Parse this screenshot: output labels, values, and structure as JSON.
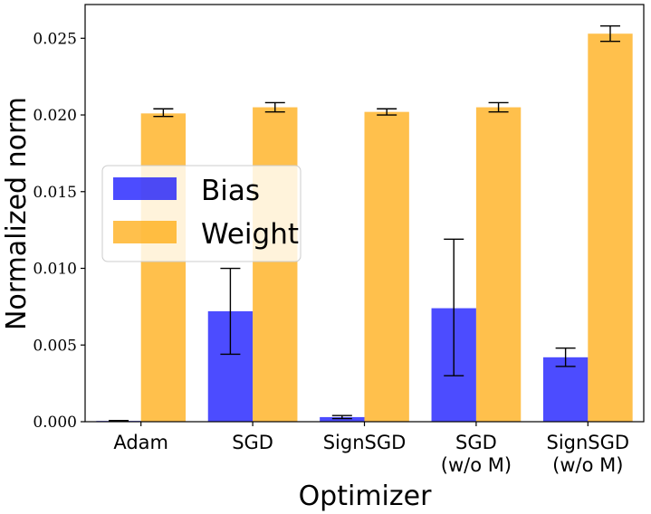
{
  "chart_data": {
    "type": "bar",
    "title": "",
    "xlabel": "Optimizer",
    "ylabel": "Normalized norm",
    "categories": [
      [
        "Adam"
      ],
      [
        "SGD"
      ],
      [
        "SignSGD"
      ],
      [
        "SGD",
        "(w/o M)"
      ],
      [
        "SignSGD",
        "(w/o M)"
      ]
    ],
    "series": [
      {
        "name": "Bias",
        "color": "#0000ff",
        "values": [
          5e-05,
          0.0072,
          0.0003,
          0.0074,
          0.0042
        ],
        "error_low": [
          3e-05,
          0.0044,
          0.0002,
          0.003,
          0.0036
        ],
        "error_high": [
          8e-05,
          0.01,
          0.0004,
          0.0119,
          0.0048
        ]
      },
      {
        "name": "Weight",
        "color": "#ffa500",
        "values": [
          0.0201,
          0.0205,
          0.0202,
          0.0205,
          0.0253
        ],
        "error_low": [
          0.0199,
          0.0202,
          0.02,
          0.0202,
          0.0248
        ],
        "error_high": [
          0.0204,
          0.0208,
          0.0204,
          0.0208,
          0.0258
        ]
      }
    ],
    "yticks": [
      "0.000",
      "0.005",
      "0.010",
      "0.015",
      "0.020",
      "0.025"
    ],
    "ylim": [
      0,
      0.0272
    ],
    "legend": "center-left"
  }
}
